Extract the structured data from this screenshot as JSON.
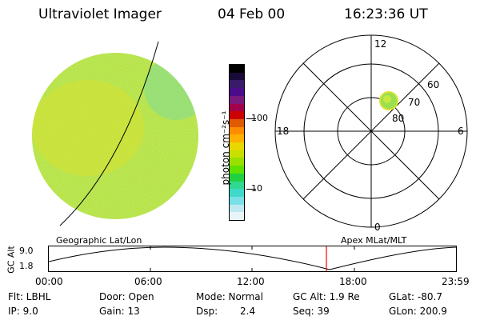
{
  "header": {
    "instrument": "Ultraviolet Imager",
    "date": "04 Feb 00",
    "time": "16:23:36 UT"
  },
  "colorbar": {
    "unit_label": "photon cm⁻²s⁻¹",
    "tick_labels": [
      "100",
      "10"
    ],
    "colors": [
      "#000000",
      "#1a0a3a",
      "#3a1a6a",
      "#4b0b8a",
      "#7a1a7a",
      "#a3004b",
      "#cc0000",
      "#e05a00",
      "#ff8c00",
      "#ffb000",
      "#e8d800",
      "#c8e000",
      "#98e000",
      "#60e000",
      "#20d040",
      "#30d890",
      "#40d8c8",
      "#7ae0e8",
      "#c0e8f0",
      "#e8f4f8"
    ]
  },
  "polar_plot": {
    "mlt_labels": [
      "12",
      "18",
      "6",
      "0"
    ],
    "lat_labels": [
      "60",
      "70",
      "80"
    ]
  },
  "timeline": {
    "y_label": "GC Alt",
    "y_ticks": [
      "9.0",
      "1.8"
    ],
    "left_caption": "Geographic Lat/Lon",
    "right_caption": "Apex  MLat/MLT",
    "time_ticks": [
      "00:00",
      "06:00",
      "12:00",
      "18:00",
      "23:59"
    ],
    "marker_color": "#ff0000"
  },
  "status": {
    "flt": "Flt: LBHL",
    "ip": "IP:  9.0",
    "door": "Door: Open",
    "gain": "Gain: 13",
    "mode": "Mode: Normal",
    "dsp_label": "Dsp:",
    "dsp_value": "2.4",
    "gc_alt": "GC Alt: 1.9 Re",
    "seq": "Seq: 39",
    "glat": "GLat:  -80.7",
    "glon": "GLon: 200.9"
  }
}
